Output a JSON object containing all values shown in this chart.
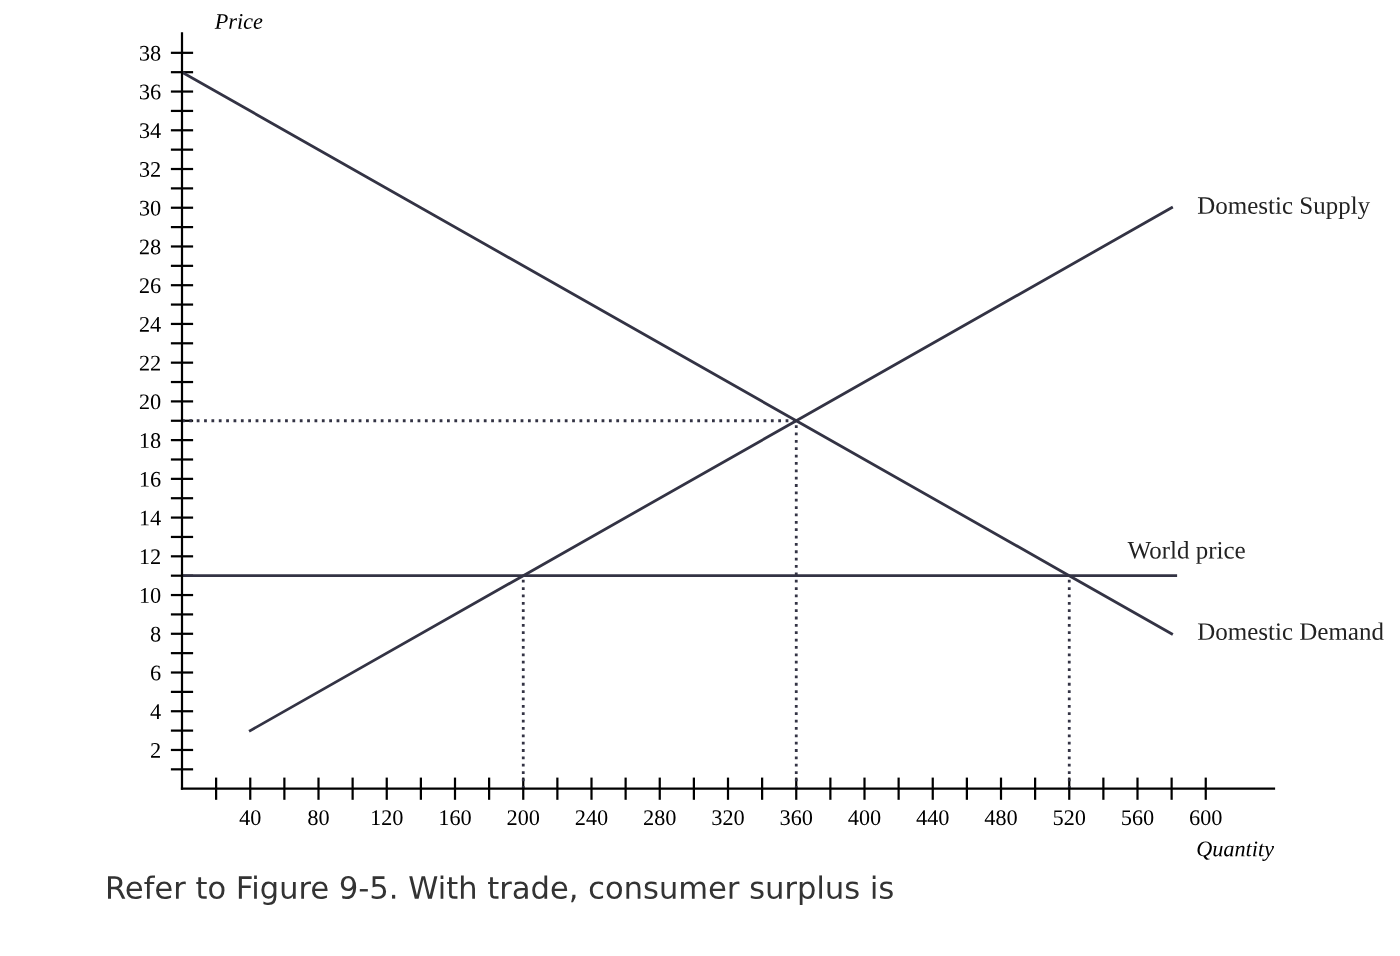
{
  "chart_data": {
    "type": "line",
    "xlabel": "Quantity",
    "ylabel": "Price",
    "xlim": [
      0,
      640
    ],
    "ylim": [
      0,
      39
    ],
    "xticks": [
      {
        "value": 20,
        "label": null
      },
      40,
      {
        "value": 60,
        "label": null
      },
      80,
      {
        "value": 100,
        "label": null
      },
      120,
      {
        "value": 140,
        "label": null
      },
      160,
      {
        "value": 180,
        "label": null
      },
      200,
      {
        "value": 220,
        "label": null
      },
      240,
      {
        "value": 260,
        "label": null
      },
      280,
      {
        "value": 300,
        "label": null
      },
      320,
      {
        "value": 340,
        "label": null
      },
      360,
      {
        "value": 380,
        "label": null
      },
      400,
      {
        "value": 420,
        "label": null
      },
      440,
      {
        "value": 460,
        "label": null
      },
      480,
      {
        "value": 500,
        "label": null
      },
      520,
      {
        "value": 540,
        "label": null
      },
      560,
      {
        "value": 580,
        "label": null
      },
      600
    ],
    "yticks": [
      {
        "value": 1,
        "label": null
      },
      2,
      {
        "value": 3,
        "label": null
      },
      4,
      {
        "value": 5,
        "label": null
      },
      6,
      {
        "value": 7,
        "label": null
      },
      8,
      {
        "value": 9,
        "label": null
      },
      10,
      {
        "value": 11,
        "label": null
      },
      12,
      {
        "value": 13,
        "label": null
      },
      14,
      {
        "value": 15,
        "label": null
      },
      16,
      {
        "value": 17,
        "label": null
      },
      18,
      {
        "value": 19,
        "label": null
      },
      20,
      {
        "value": 21,
        "label": null
      },
      22,
      {
        "value": 23,
        "label": null
      },
      24,
      {
        "value": 25,
        "label": null
      },
      26,
      {
        "value": 27,
        "label": null
      },
      28,
      {
        "value": 29,
        "label": null
      },
      30,
      {
        "value": 31,
        "label": null
      },
      32,
      {
        "value": 33,
        "label": null
      },
      34,
      {
        "value": 35,
        "label": null
      },
      36,
      {
        "value": 37,
        "label": null
      },
      38
    ],
    "grid": false,
    "legend": false,
    "marker": "none",
    "series": [
      {
        "name": "Domestic Supply",
        "color": "#333344",
        "x": [
          40,
          200,
          360,
          580
        ],
        "values": [
          3,
          11,
          19,
          30
        ],
        "line_style": "solid"
      },
      {
        "name": "Domestic Demand",
        "color": "#333344",
        "x": [
          0,
          360,
          520,
          580
        ],
        "values": [
          37,
          19,
          11,
          8
        ],
        "line_style": "solid"
      },
      {
        "color": "#333344",
        "x": [
          0,
          360
        ],
        "values": [
          19,
          19
        ],
        "line_style": "dotted"
      },
      {
        "color": "#333344",
        "x": [
          360,
          360
        ],
        "values": [
          0,
          19
        ],
        "line_style": "dotted"
      },
      {
        "color": "#333344",
        "x": [
          200,
          200
        ],
        "values": [
          0,
          11
        ],
        "line_style": "dotted"
      },
      {
        "color": "#333344",
        "x": [
          520,
          520
        ],
        "values": [
          0,
          11
        ],
        "line_style": "dotted"
      }
    ],
    "ref_lines": [
      {
        "axis": "y",
        "value": 11,
        "label": "World price",
        "color": "#333344",
        "line_style": "solid"
      }
    ],
    "annotations": [
      "Refer to Figure 9-5. With trade, consumer surplus is"
    ]
  }
}
